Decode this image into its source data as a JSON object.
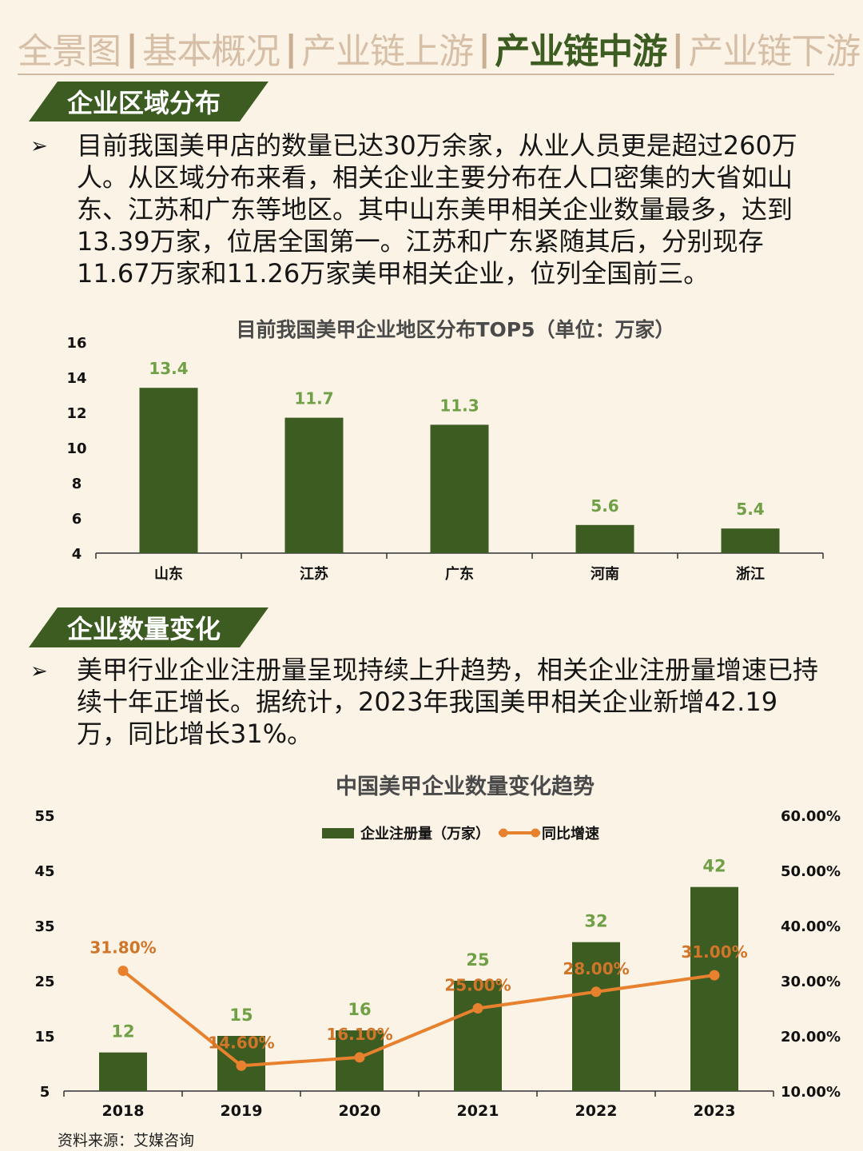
{
  "nav": {
    "tabs": [
      {
        "label": "全景图",
        "active": false
      },
      {
        "label": "基本概况",
        "active": false
      },
      {
        "label": "产业链上游",
        "active": false
      },
      {
        "label": "产业链中游",
        "active": true
      },
      {
        "label": "产业链下游",
        "active": false
      }
    ],
    "separator": "|"
  },
  "section1": {
    "title": "企业区域分布",
    "bullet": "➢",
    "text": "目前我国美甲店的数量已达30万余家，从业人员更是超过260万人。从区域分布来看，相关企业主要分布在人口密集的大省如山东、江苏和广东等地区。其中山东美甲相关企业数量最多，达到13.39万家，位居全国第一。江苏和广东紧随其后，分别现存11.67万家和11.26万家美甲相关企业，位列全国前三。"
  },
  "section2": {
    "title": "企业数量变化",
    "bullet": "➢",
    "text": "美甲行业企业注册量呈现持续上升趋势，相关企业注册量增速已持续十年正增长。据统计，2023年我国美甲相关企业新增42.19万，同比增长31%。"
  },
  "colors": {
    "bar": "#3D5C22",
    "bar_label": "#6FA046",
    "line": "#E8812E",
    "line_label": "#D0762A",
    "axis_text": "#111111",
    "title_text": "#4A4A4A"
  },
  "chart_data": [
    {
      "type": "bar",
      "title": "目前我国美甲企业地区分布TOP5（单位：万家）",
      "categories": [
        "山东",
        "江苏",
        "广东",
        "河南",
        "浙江"
      ],
      "values": [
        13.4,
        11.7,
        11.3,
        5.6,
        5.4
      ],
      "value_labels": [
        "13.4",
        "11.7",
        "11.3",
        "5.6",
        "5.4"
      ],
      "ylim": [
        4,
        16
      ],
      "yticks": [
        "4",
        "6",
        "8",
        "10",
        "12",
        "14",
        "16"
      ],
      "grid": false
    },
    {
      "type": "bar",
      "title": "中国美甲企业数量变化趋势",
      "categories": [
        "2018",
        "2019",
        "2020",
        "2021",
        "2022",
        "2023"
      ],
      "series": [
        {
          "name": "企业注册量（万家）",
          "type": "bar",
          "axis": "left",
          "values": [
            12,
            15,
            16,
            25,
            32,
            42
          ],
          "labels": [
            "12",
            "15",
            "16",
            "25",
            "32",
            "42"
          ]
        },
        {
          "name": "同比增速",
          "type": "line",
          "axis": "right",
          "values": [
            31.8,
            14.6,
            16.1,
            25.0,
            28.0,
            31.0
          ],
          "labels": [
            "31.80%",
            "14.60%",
            "16.10%",
            "25.00%",
            "28.00%",
            "31.00%"
          ]
        }
      ],
      "ylim_left": [
        5,
        55
      ],
      "yticks_left": [
        "5",
        "15",
        "25",
        "35",
        "45",
        "55"
      ],
      "ylim_right": [
        10,
        60
      ],
      "yticks_right": [
        "10.00%",
        "20.00%",
        "30.00%",
        "40.00%",
        "50.00%",
        "60.00%"
      ],
      "legend": "top-center",
      "grid": false
    }
  ],
  "source": "资料来源：艾媒咨询"
}
